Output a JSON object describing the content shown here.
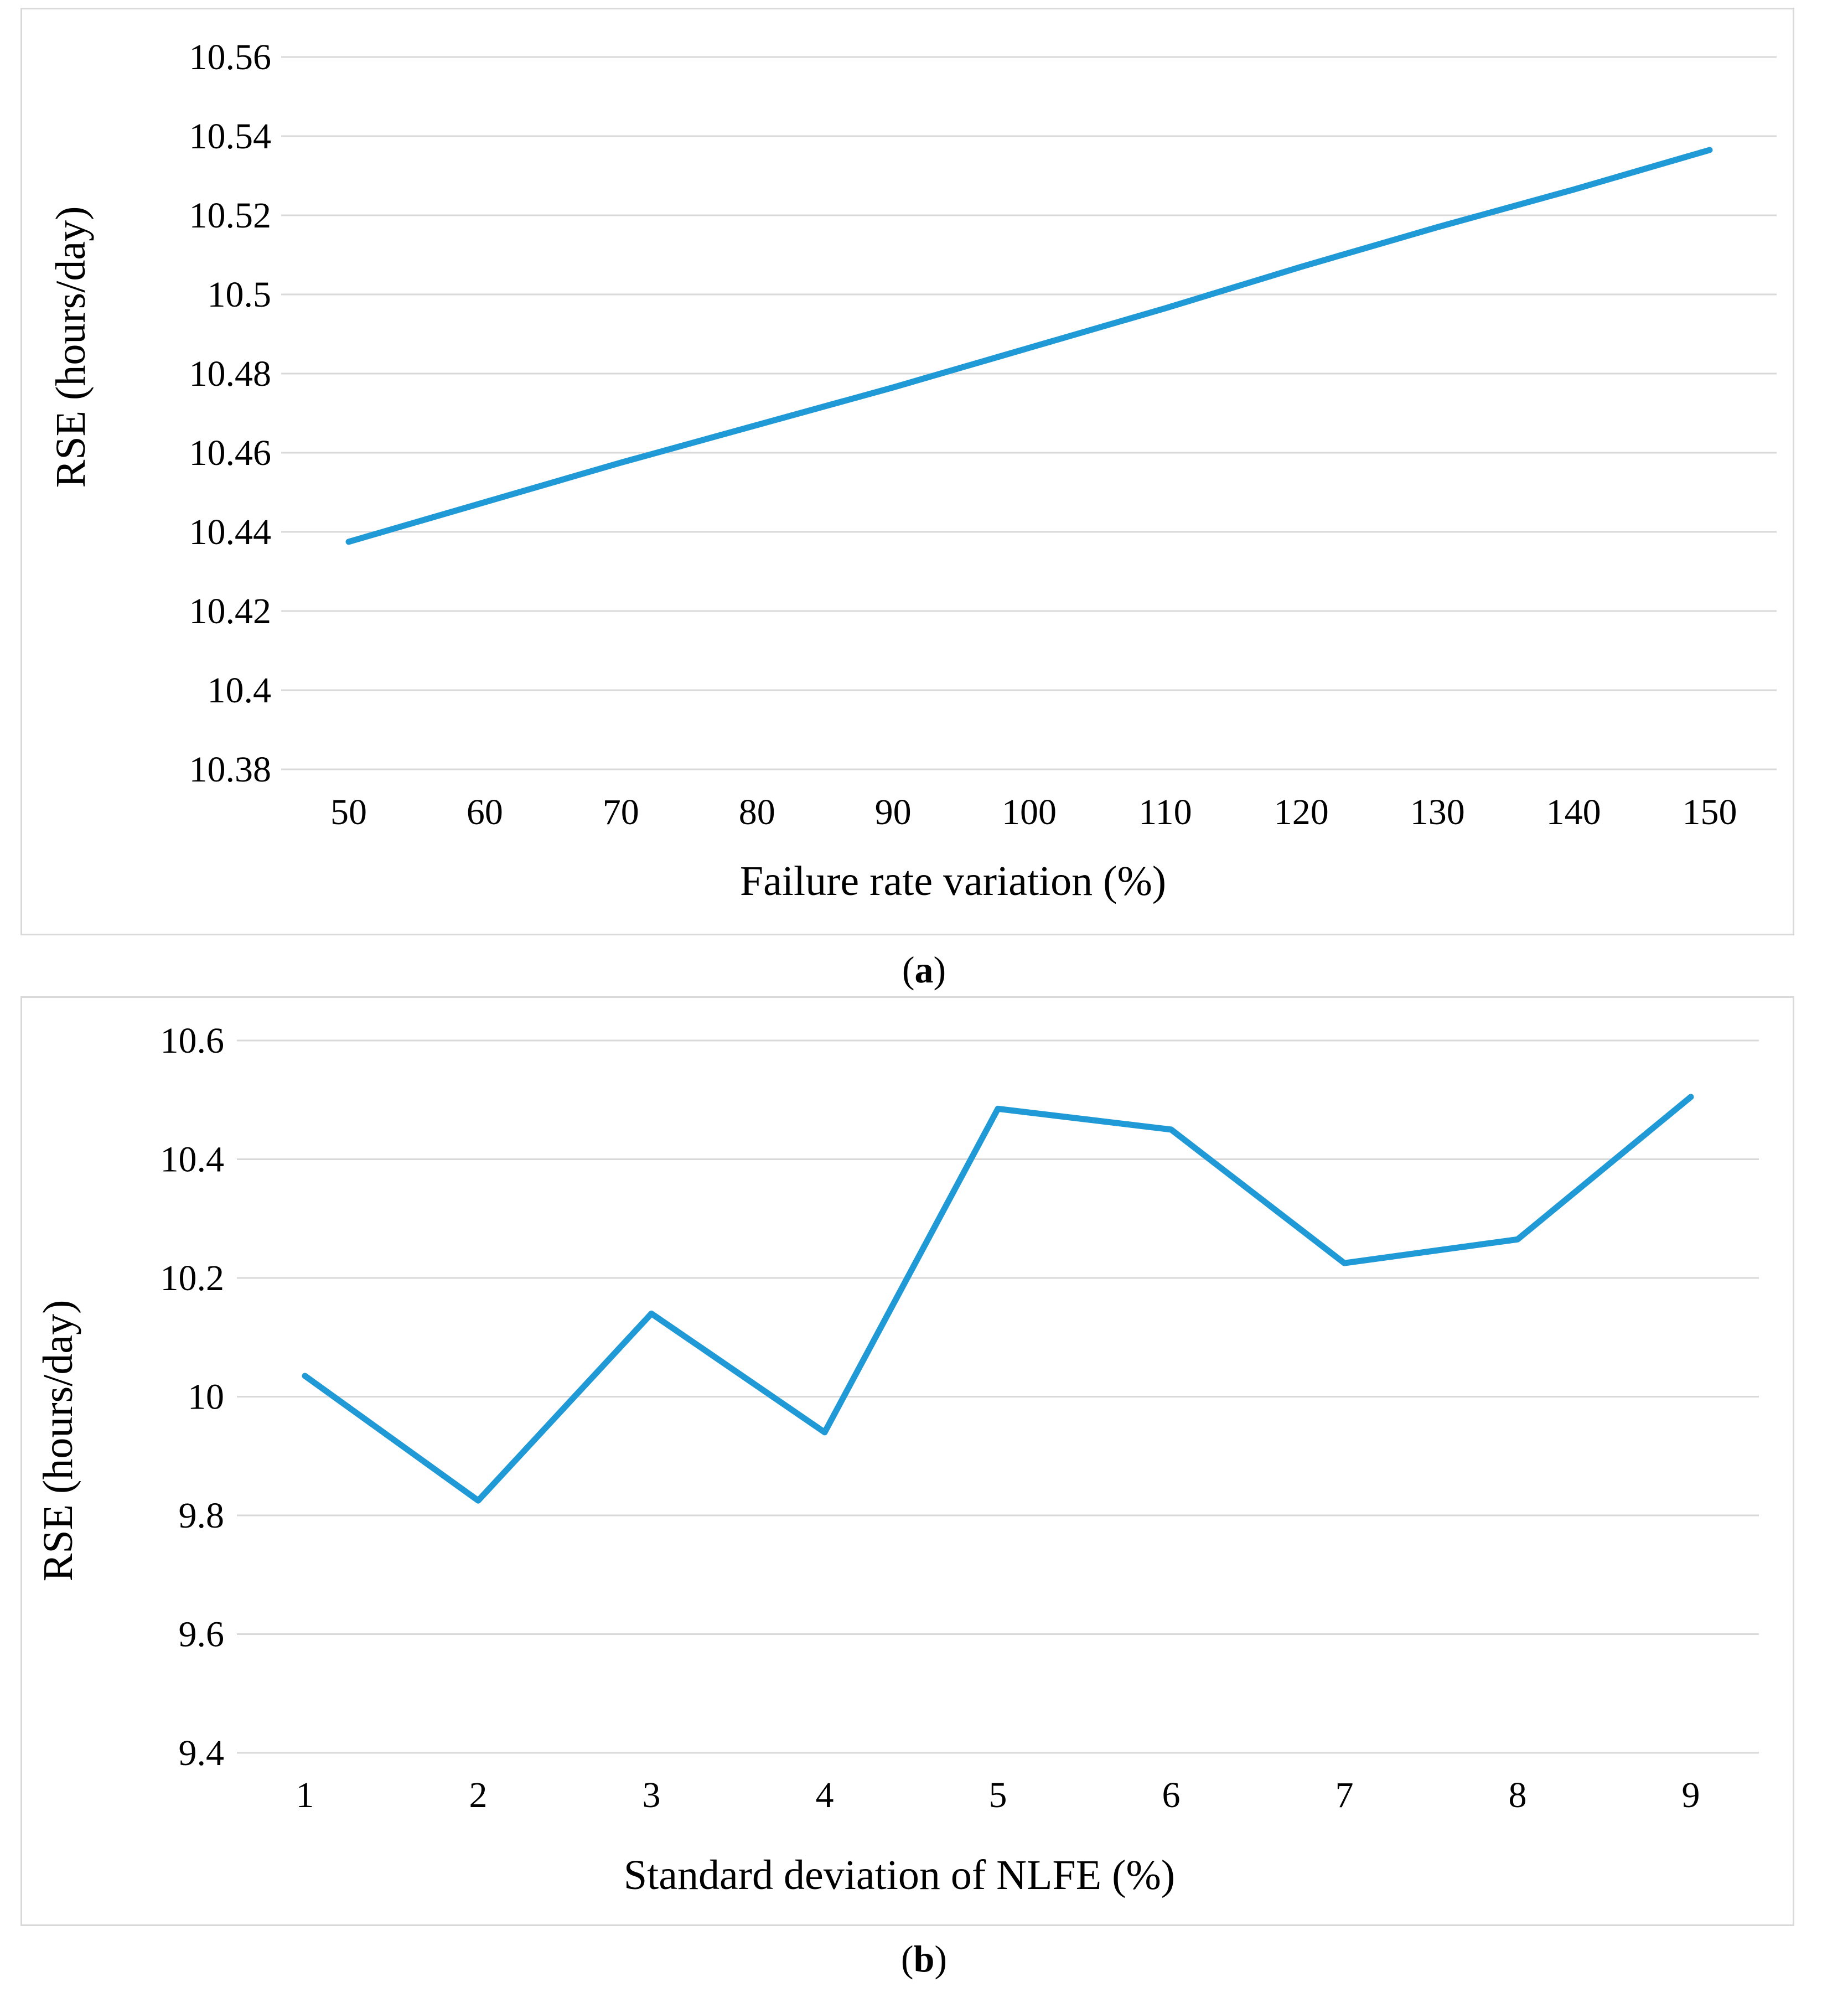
{
  "chart_data": [
    {
      "type": "line",
      "title": "",
      "xlabel": "Failure rate variation (%)",
      "ylabel": "RSE (hours/day)",
      "categories": [
        "50",
        "60",
        "70",
        "80",
        "90",
        "100",
        "110",
        "120",
        "130",
        "140",
        "150"
      ],
      "x": [
        50,
        60,
        70,
        80,
        90,
        100,
        110,
        120,
        130,
        140,
        150
      ],
      "series": [
        {
          "name": "RSE",
          "values": [
            10.4375,
            10.4475,
            10.4575,
            10.467,
            10.4765,
            10.4865,
            10.4965,
            10.507,
            10.517,
            10.5265,
            10.5365
          ]
        }
      ],
      "yticks": [
        "10.38",
        "10.4",
        "10.42",
        "10.44",
        "10.46",
        "10.48",
        "10.5",
        "10.52",
        "10.54",
        "10.56"
      ],
      "ylim": [
        10.38,
        10.56
      ],
      "grid": true,
      "caption_letter": "a"
    },
    {
      "type": "line",
      "title": "",
      "xlabel": "Standard deviation of NLFE (%)",
      "ylabel": "RSE (hours/day)",
      "categories": [
        "1",
        "2",
        "3",
        "4",
        "5",
        "6",
        "7",
        "8",
        "9"
      ],
      "x": [
        1,
        2,
        3,
        4,
        5,
        6,
        7,
        8,
        9
      ],
      "series": [
        {
          "name": "RSE",
          "values": [
            10.035,
            9.825,
            10.14,
            9.94,
            10.485,
            10.45,
            10.225,
            10.265,
            10.505
          ]
        }
      ],
      "yticks": [
        "9.4",
        "9.6",
        "9.8",
        "10",
        "10.2",
        "10.4",
        "10.6"
      ],
      "ylim": [
        9.4,
        10.6
      ],
      "grid": true,
      "caption_letter": "b"
    }
  ],
  "colors": {
    "series": "#1f9ad6",
    "grid": "#d9d9d9",
    "border": "#d9d9d9"
  }
}
